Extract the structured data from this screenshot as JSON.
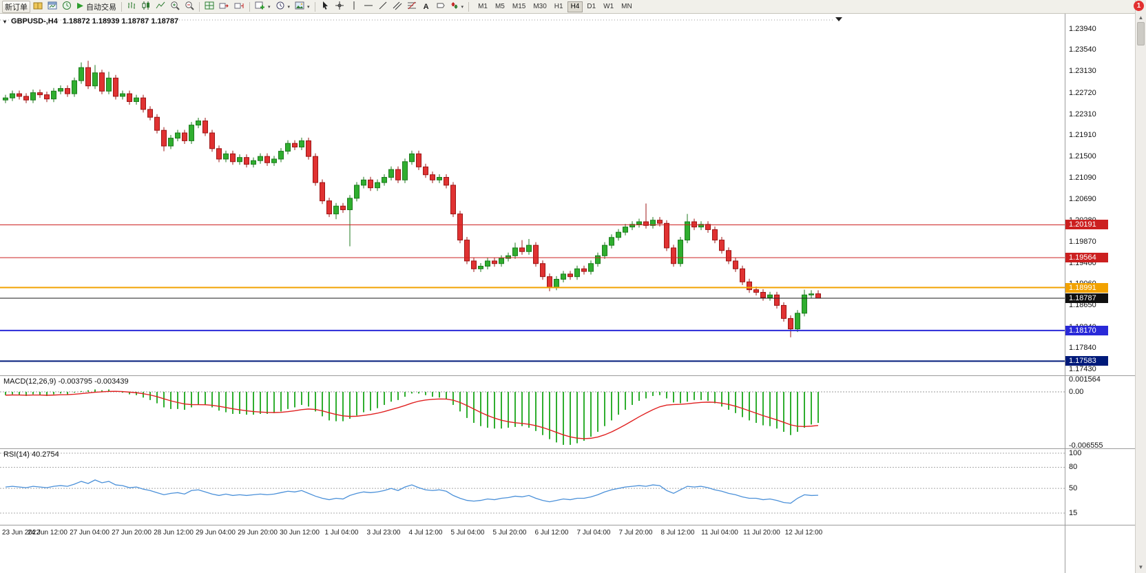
{
  "window": {
    "notification_badge": "1"
  },
  "toolbar": {
    "new_order": "新订单",
    "auto_trading": "自动交易",
    "text_tool": "A",
    "timeframes": [
      "M1",
      "M5",
      "M15",
      "M30",
      "H1",
      "H4",
      "D1",
      "W1",
      "MN"
    ],
    "active_timeframe": "H4"
  },
  "chart": {
    "title_symbol": "GBPUSD-,H4",
    "title_ohlc": "1.18872 1.18939 1.18787 1.18787",
    "up_color": "#2fae2f",
    "down_color": "#e03232",
    "up_edge": "#1d7a1d",
    "down_edge": "#9c1414",
    "levels": [
      {
        "label": "1.20191",
        "value": 1.20191,
        "color": "#cc2020",
        "width": 1
      },
      {
        "label": "1.19564",
        "value": 1.19564,
        "color": "#cc2020",
        "width": 1
      },
      {
        "label": "1.18991",
        "value": 1.18991,
        "color": "#f2a200",
        "width": 2
      },
      {
        "label": "1.18170",
        "value": 1.1817,
        "color": "#2929d8",
        "width": 2
      },
      {
        "label": "1.17583",
        "value": 1.17583,
        "color": "#001a7a",
        "width": 2
      }
    ],
    "current_price": {
      "label": "1.18787",
      "value": 1.18787,
      "color": "#1a1a1a",
      "box": "#101010"
    }
  },
  "price_axis": {
    "ticks": [
      "1.23940",
      "1.23540",
      "1.23130",
      "1.22720",
      "1.22310",
      "1.21910",
      "1.21500",
      "1.21090",
      "1.20690",
      "1.20280",
      "1.19870",
      "1.19460",
      "1.19060",
      "1.18650",
      "1.18240",
      "1.17840",
      "1.17430"
    ]
  },
  "macd": {
    "label": "MACD(12,26,9) -0.003795 -0.003439",
    "axis_labels": [
      "0.001564",
      "0.00",
      "-0.006555"
    ],
    "ylim": [
      -0.006555,
      0.001564
    ]
  },
  "rsi": {
    "label": "RSI(14) 40.2754",
    "axis_labels": [
      "100",
      "80",
      "50",
      "15"
    ],
    "levels": [
      100,
      80,
      50,
      15
    ],
    "ylim": [
      15,
      100
    ]
  },
  "time_axis": {
    "labels": [
      "23 Jun 2022",
      "24 Jun 12:00",
      "27 Jun 04:00",
      "27 Jun 20:00",
      "28 Jun 12:00",
      "29 Jun 04:00",
      "29 Jun 20:00",
      "30 Jun 12:00",
      "1 Jul 04:00",
      "3 Jul 23:00",
      "4 Jul 12:00",
      "5 Jul 04:00",
      "5 Jul 20:00",
      "6 Jul 12:00",
      "7 Jul 04:00",
      "7 Jul 20:00",
      "8 Jul 12:00",
      "11 Jul 04:00",
      "11 Jul 20:00",
      "12 Jul 12:00"
    ]
  },
  "chart_data": [
    {
      "type": "candlestick",
      "name": "GBPUSD- H4",
      "ylim": [
        1.1743,
        1.2394
      ],
      "candles": [
        [
          1.2258,
          1.2268,
          1.2252,
          1.2262
        ],
        [
          1.2262,
          1.2276,
          1.2256,
          1.227
        ],
        [
          1.227,
          1.2276,
          1.2259,
          1.2265
        ],
        [
          1.2265,
          1.2271,
          1.2252,
          1.2258
        ],
        [
          1.2258,
          1.2278,
          1.2252,
          1.2272
        ],
        [
          1.2272,
          1.2278,
          1.2262,
          1.2268
        ],
        [
          1.2268,
          1.2274,
          1.2254,
          1.226
        ],
        [
          1.226,
          1.2281,
          1.2254,
          1.2275
        ],
        [
          1.2275,
          1.2286,
          1.2269,
          1.228
        ],
        [
          1.228,
          1.2286,
          1.2264,
          1.227
        ],
        [
          1.227,
          1.2301,
          1.2264,
          1.2295
        ],
        [
          1.2295,
          1.233,
          1.2289,
          1.232
        ],
        [
          1.232,
          1.2333,
          1.2279,
          1.2285
        ],
        [
          1.2285,
          1.2325,
          1.2279,
          1.231
        ],
        [
          1.231,
          1.2316,
          1.2269,
          1.2275
        ],
        [
          1.2275,
          1.2312,
          1.2269,
          1.23
        ],
        [
          1.23,
          1.2306,
          1.2259,
          1.2265
        ],
        [
          1.2265,
          1.2276,
          1.2259,
          1.227
        ],
        [
          1.227,
          1.2276,
          1.2249,
          1.2255
        ],
        [
          1.2255,
          1.2268,
          1.2249,
          1.2262
        ],
        [
          1.2262,
          1.2268,
          1.2234,
          1.224
        ],
        [
          1.224,
          1.2246,
          1.2219,
          1.2225
        ],
        [
          1.2225,
          1.2231,
          1.2194,
          1.22
        ],
        [
          1.22,
          1.2206,
          1.216,
          1.217
        ],
        [
          1.217,
          1.2191,
          1.2164,
          1.2185
        ],
        [
          1.2185,
          1.2201,
          1.2179,
          1.2195
        ],
        [
          1.2195,
          1.2201,
          1.2174,
          1.218
        ],
        [
          1.218,
          1.2216,
          1.2174,
          1.221
        ],
        [
          1.221,
          1.2224,
          1.2204,
          1.2218
        ],
        [
          1.2218,
          1.2224,
          1.2189,
          1.2195
        ],
        [
          1.2195,
          1.2201,
          1.2159,
          1.2165
        ],
        [
          1.2165,
          1.2171,
          1.2139,
          1.2145
        ],
        [
          1.2145,
          1.2161,
          1.2139,
          1.2155
        ],
        [
          1.2155,
          1.2161,
          1.2134,
          1.214
        ],
        [
          1.214,
          1.2154,
          1.2134,
          1.2148
        ],
        [
          1.2148,
          1.2154,
          1.2129,
          1.2135
        ],
        [
          1.2135,
          1.2148,
          1.2129,
          1.2142
        ],
        [
          1.2142,
          1.2156,
          1.2136,
          1.215
        ],
        [
          1.215,
          1.2156,
          1.2132,
          1.2138
        ],
        [
          1.2138,
          1.2151,
          1.2132,
          1.2145
        ],
        [
          1.2145,
          1.2166,
          1.2139,
          1.216
        ],
        [
          1.216,
          1.2181,
          1.2154,
          1.2175
        ],
        [
          1.2175,
          1.2181,
          1.2162,
          1.2168
        ],
        [
          1.2168,
          1.2186,
          1.2162,
          1.218
        ],
        [
          1.218,
          1.2186,
          1.2144,
          1.215
        ],
        [
          1.215,
          1.2156,
          1.2094,
          1.21
        ],
        [
          1.21,
          1.2106,
          1.2059,
          1.2065
        ],
        [
          1.2065,
          1.2071,
          1.2034,
          1.204
        ],
        [
          1.204,
          1.2061,
          1.203,
          1.2055
        ],
        [
          1.2055,
          1.2061,
          1.2042,
          1.2048
        ],
        [
          1.2048,
          1.2076,
          1.1978,
          1.207
        ],
        [
          1.207,
          1.2101,
          1.2064,
          1.2095
        ],
        [
          1.2095,
          1.2111,
          1.2089,
          1.2105
        ],
        [
          1.2105,
          1.2111,
          1.2084,
          1.209
        ],
        [
          1.209,
          1.2106,
          1.2084,
          1.21
        ],
        [
          1.21,
          1.2116,
          1.2094,
          1.211
        ],
        [
          1.211,
          1.2131,
          1.2104,
          1.2125
        ],
        [
          1.2125,
          1.2131,
          1.2099,
          1.2105
        ],
        [
          1.2105,
          1.2146,
          1.2099,
          1.214
        ],
        [
          1.214,
          1.2161,
          1.2134,
          1.2155
        ],
        [
          1.2155,
          1.2161,
          1.2124,
          1.213
        ],
        [
          1.213,
          1.2136,
          1.2109,
          1.2115
        ],
        [
          1.2115,
          1.2121,
          1.2099,
          1.2105
        ],
        [
          1.2105,
          1.2116,
          1.2099,
          1.211
        ],
        [
          1.211,
          1.2116,
          1.2089,
          1.2095
        ],
        [
          1.2095,
          1.2101,
          1.2034,
          1.204
        ],
        [
          1.204,
          1.2046,
          1.1984,
          1.199
        ],
        [
          1.199,
          1.1996,
          1.1944,
          1.195
        ],
        [
          1.195,
          1.1956,
          1.1929,
          1.1935
        ],
        [
          1.1935,
          1.1946,
          1.1929,
          1.194
        ],
        [
          1.194,
          1.1956,
          1.1934,
          1.195
        ],
        [
          1.195,
          1.1956,
          1.1939,
          1.1945
        ],
        [
          1.1945,
          1.1961,
          1.1939,
          1.1955
        ],
        [
          1.1955,
          1.1966,
          1.1949,
          1.196
        ],
        [
          1.196,
          1.1985,
          1.1954,
          1.1975
        ],
        [
          1.1975,
          1.199,
          1.1962,
          1.1968
        ],
        [
          1.1968,
          1.1992,
          1.1962,
          1.198
        ],
        [
          1.198,
          1.1986,
          1.1939,
          1.1945
        ],
        [
          1.1945,
          1.1951,
          1.1914,
          1.192
        ],
        [
          1.192,
          1.1926,
          1.1892,
          1.19
        ],
        [
          1.19,
          1.1921,
          1.1894,
          1.1915
        ],
        [
          1.1915,
          1.1931,
          1.1909,
          1.1925
        ],
        [
          1.1925,
          1.1931,
          1.1914,
          1.192
        ],
        [
          1.192,
          1.1941,
          1.1914,
          1.1935
        ],
        [
          1.1935,
          1.1941,
          1.1924,
          1.193
        ],
        [
          1.193,
          1.1951,
          1.1924,
          1.1945
        ],
        [
          1.1945,
          1.1966,
          1.1939,
          1.196
        ],
        [
          1.196,
          1.1986,
          1.1954,
          1.198
        ],
        [
          1.198,
          1.2001,
          1.1974,
          1.1995
        ],
        [
          1.1995,
          1.2011,
          1.1989,
          1.2005
        ],
        [
          1.2005,
          1.2021,
          1.1999,
          1.2015
        ],
        [
          1.2015,
          1.2026,
          1.2009,
          1.202
        ],
        [
          1.202,
          1.2031,
          1.2014,
          1.2025
        ],
        [
          1.2025,
          1.206,
          1.2012,
          1.2018
        ],
        [
          1.2018,
          1.2034,
          1.2012,
          1.2028
        ],
        [
          1.2028,
          1.2034,
          1.2016,
          1.2022
        ],
        [
          1.2022,
          1.2028,
          1.1969,
          1.1975
        ],
        [
          1.1975,
          1.1981,
          1.1939,
          1.1945
        ],
        [
          1.1945,
          1.1996,
          1.1939,
          1.199
        ],
        [
          1.199,
          1.204,
          1.1984,
          1.2025
        ],
        [
          1.2025,
          1.2031,
          1.2009,
          1.2015
        ],
        [
          1.2015,
          1.2026,
          1.2009,
          1.202
        ],
        [
          1.202,
          1.2026,
          1.2004,
          1.201
        ],
        [
          1.201,
          1.2016,
          1.1984,
          1.199
        ],
        [
          1.199,
          1.1996,
          1.1964,
          1.197
        ],
        [
          1.197,
          1.1976,
          1.1944,
          1.195
        ],
        [
          1.195,
          1.1956,
          1.1929,
          1.1935
        ],
        [
          1.1935,
          1.1941,
          1.1904,
          1.191
        ],
        [
          1.191,
          1.1916,
          1.1889,
          1.1895
        ],
        [
          1.1895,
          1.1901,
          1.1884,
          1.189
        ],
        [
          1.189,
          1.1896,
          1.1874,
          1.188
        ],
        [
          1.188,
          1.1891,
          1.1874,
          1.1885
        ],
        [
          1.1885,
          1.1891,
          1.1859,
          1.1865
        ],
        [
          1.1865,
          1.1871,
          1.1834,
          1.184
        ],
        [
          1.184,
          1.1846,
          1.1804,
          1.182
        ],
        [
          1.182,
          1.1856,
          1.1814,
          1.185
        ],
        [
          1.185,
          1.1895,
          1.1844,
          1.1885
        ],
        [
          1.1885,
          1.1894,
          1.1879,
          1.1887
        ],
        [
          1.18872,
          1.18939,
          1.18787,
          1.18787
        ]
      ]
    },
    {
      "type": "bar",
      "name": "MACD(12,26,9) histogram",
      "signal_period": 9,
      "values": [
        -0.0004,
        -0.0003,
        -0.0004,
        -0.0005,
        -0.0003,
        -0.0004,
        -0.0005,
        -0.0003,
        -0.0002,
        -0.0003,
        -0.0001,
        0.0001,
        0.0002,
        0.0003,
        0.0002,
        0.0003,
        0.0001,
        -0.0001,
        -0.0003,
        -0.0004,
        -0.0007,
        -0.001,
        -0.0014,
        -0.0019,
        -0.0021,
        -0.0021,
        -0.0022,
        -0.0019,
        -0.0016,
        -0.0016,
        -0.0019,
        -0.0023,
        -0.0025,
        -0.0027,
        -0.0027,
        -0.0028,
        -0.0028,
        -0.0027,
        -0.0027,
        -0.0026,
        -0.0024,
        -0.0021,
        -0.0019,
        -0.0016,
        -0.0018,
        -0.0024,
        -0.003,
        -0.0035,
        -0.0036,
        -0.0036,
        -0.0033,
        -0.0029,
        -0.0025,
        -0.0023,
        -0.002,
        -0.0016,
        -0.0012,
        -0.001,
        -0.0006,
        -0.0002,
        -0.0002,
        -0.0004,
        -0.0006,
        -0.0007,
        -0.0009,
        -0.0016,
        -0.0024,
        -0.0032,
        -0.0038,
        -0.0042,
        -0.0044,
        -0.0045,
        -0.0045,
        -0.0044,
        -0.0043,
        -0.0042,
        -0.0044,
        -0.0048,
        -0.0053,
        -0.0058,
        -0.0062,
        -0.0065,
        -0.0065,
        -0.0063,
        -0.006,
        -0.0055,
        -0.0049,
        -0.0042,
        -0.0035,
        -0.0028,
        -0.0022,
        -0.0016,
        -0.0011,
        -0.0008,
        -0.0005,
        -0.0004,
        -0.0008,
        -0.0013,
        -0.0014,
        -0.0012,
        -0.001,
        -0.001,
        -0.0011,
        -0.0014,
        -0.0018,
        -0.0022,
        -0.0026,
        -0.0031,
        -0.0035,
        -0.0038,
        -0.0041,
        -0.0042,
        -0.0045,
        -0.0049,
        -0.0053,
        -0.0049,
        -0.0044,
        -0.004,
        -0.0038
      ]
    },
    {
      "type": "line",
      "name": "RSI(14)",
      "values": [
        52,
        53,
        52,
        51,
        53,
        52,
        51,
        53,
        54,
        53,
        56,
        60,
        57,
        62,
        58,
        60,
        55,
        54,
        51,
        52,
        49,
        47,
        44,
        41,
        43,
        44,
        42,
        47,
        48,
        45,
        42,
        40,
        42,
        40,
        41,
        40,
        41,
        42,
        41,
        42,
        44,
        46,
        45,
        47,
        43,
        39,
        36,
        34,
        36,
        35,
        40,
        43,
        45,
        44,
        45,
        47,
        50,
        47,
        52,
        55,
        51,
        48,
        47,
        48,
        46,
        40,
        36,
        33,
        32,
        33,
        35,
        34,
        36,
        37,
        39,
        38,
        40,
        36,
        33,
        31,
        33,
        35,
        34,
        36,
        36,
        38,
        41,
        45,
        48,
        50,
        52,
        53,
        54,
        53,
        55,
        54,
        47,
        43,
        48,
        53,
        52,
        53,
        51,
        48,
        46,
        43,
        41,
        38,
        36,
        36,
        34,
        35,
        33,
        30,
        29,
        36,
        41,
        40,
        40.28
      ]
    }
  ]
}
